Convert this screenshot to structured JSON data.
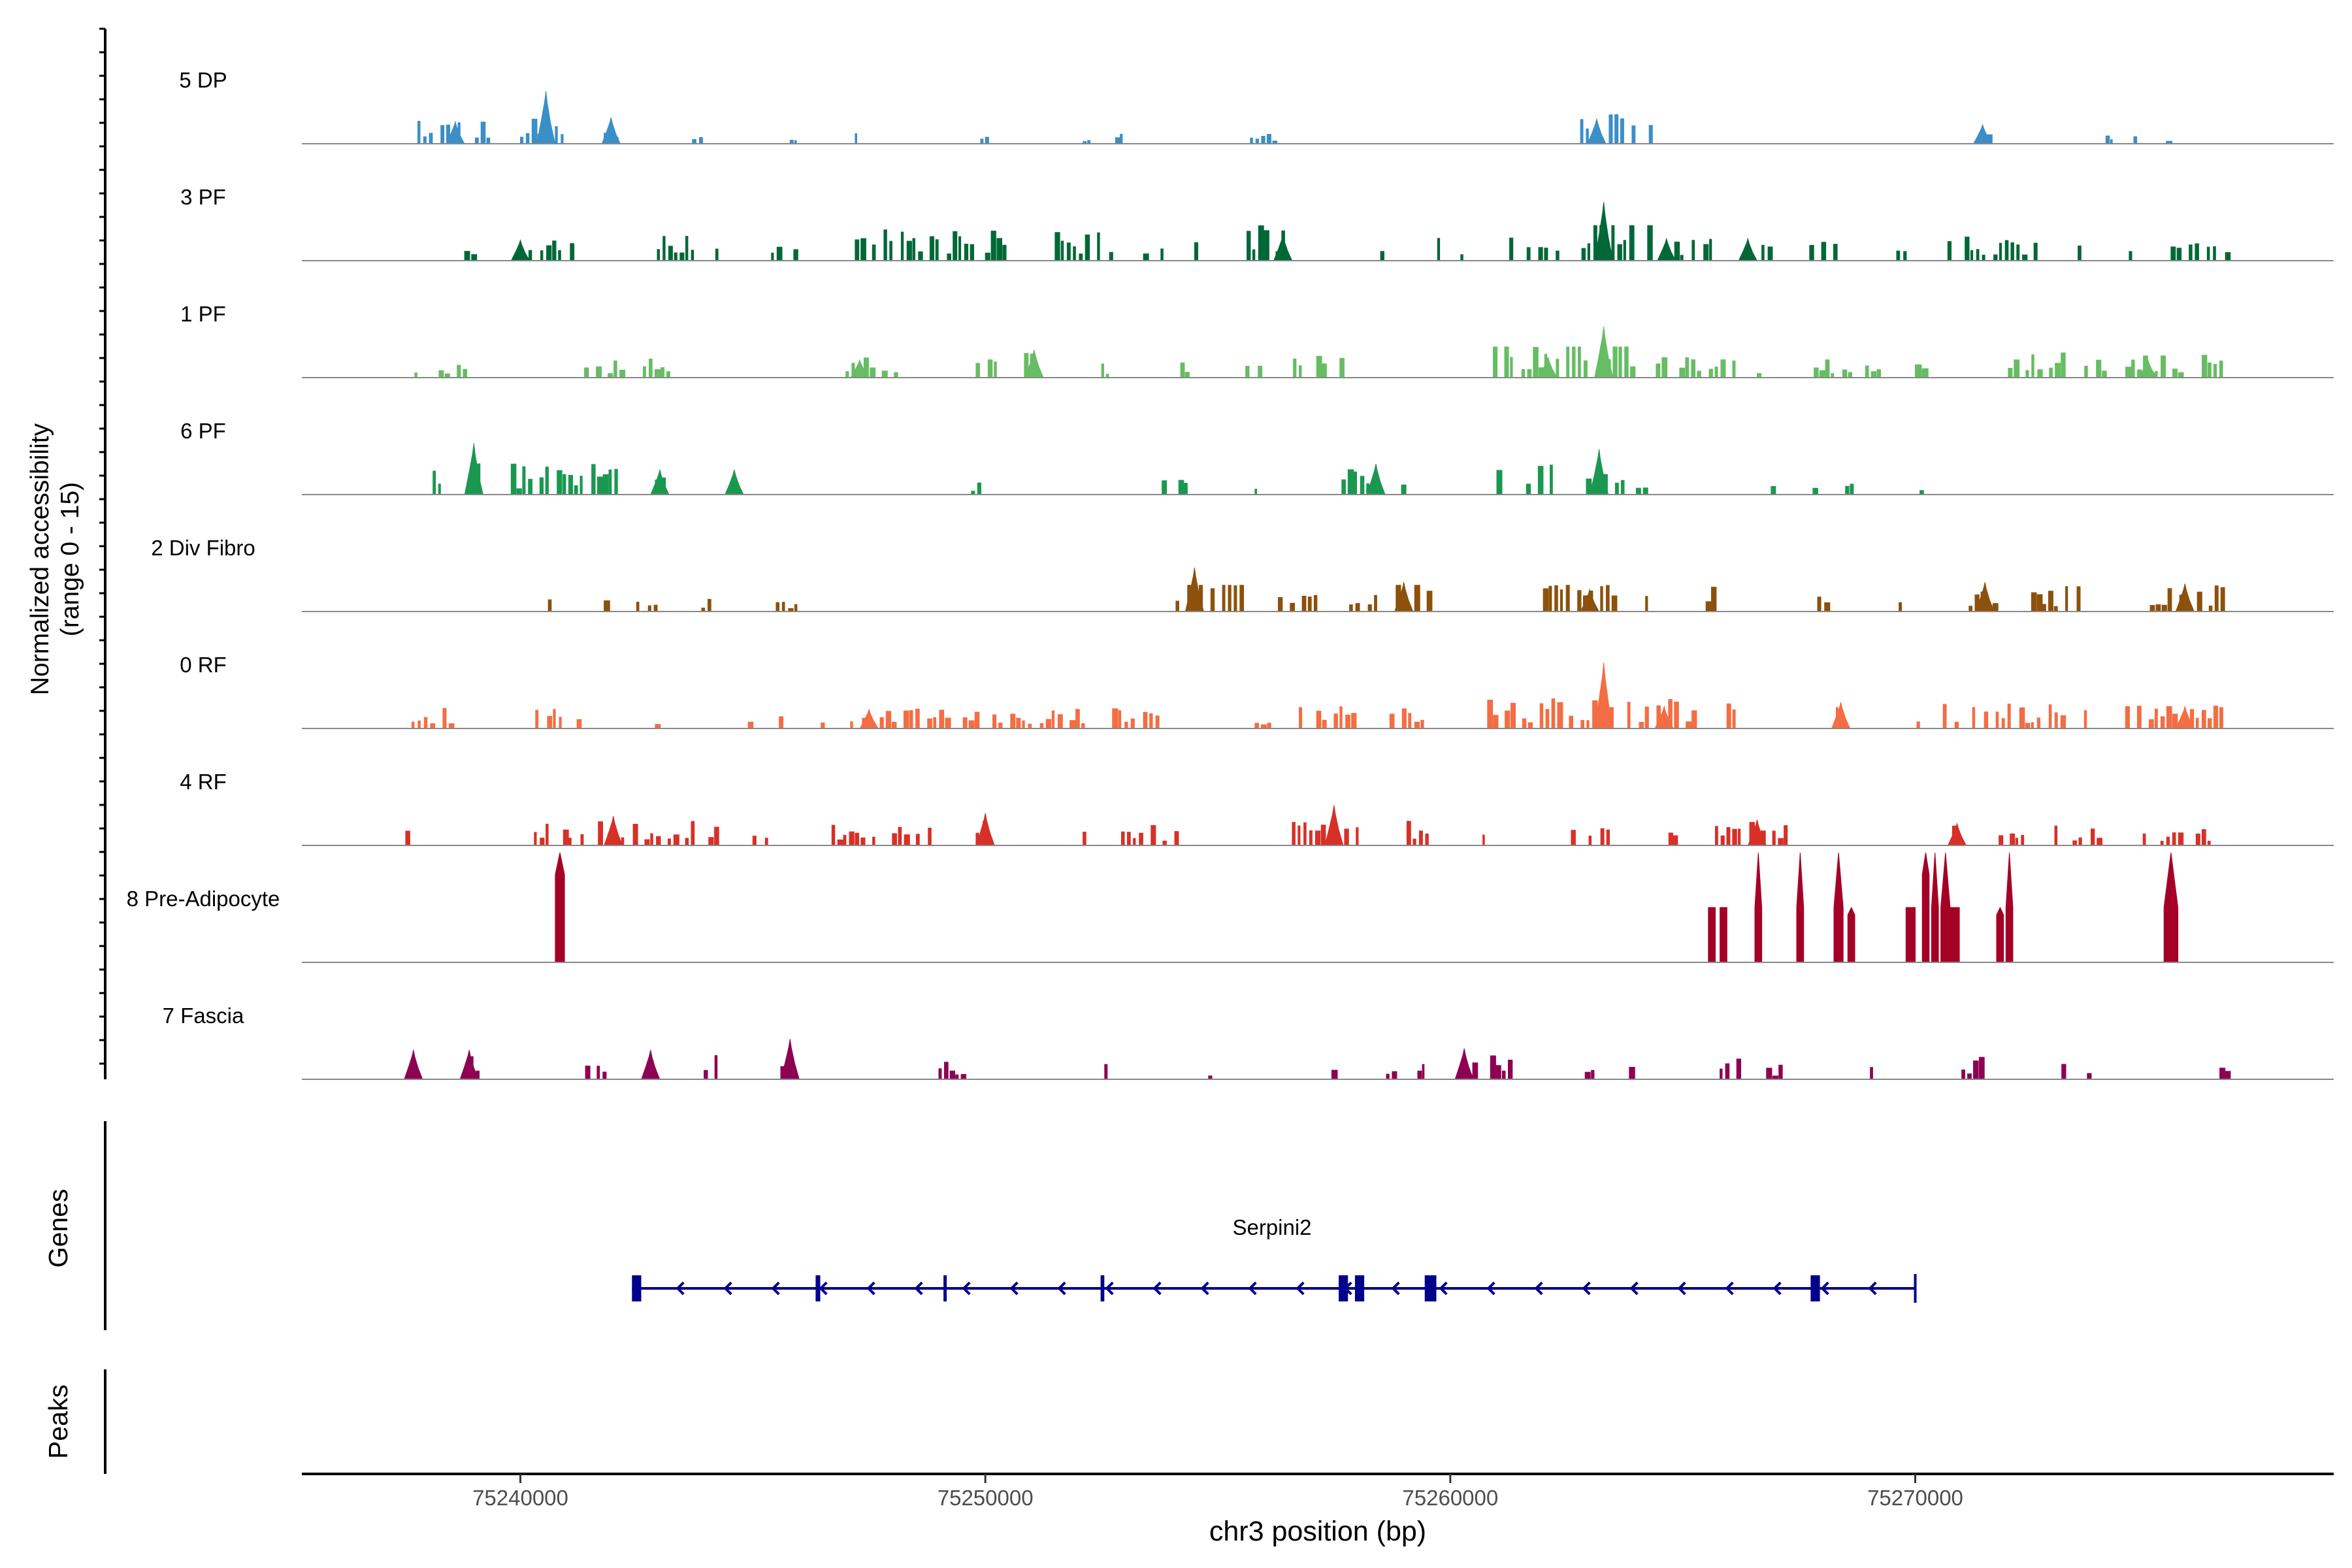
{
  "chart_data": {
    "type": "area",
    "chromosome": "chr3",
    "xlim": [
      75235300,
      75279000
    ],
    "xlabel": "chr3 position (bp)",
    "x_ticks": [
      75240000,
      75250000,
      75260000,
      75270000
    ],
    "x_tick_labels": [
      "75240000",
      "75250000",
      "75260000",
      "75270000"
    ],
    "ylabel_line1": "Normalized accessibility",
    "ylabel_line2": "(range 0 - 15)",
    "ylim": [
      0,
      15
    ],
    "genes_label": "Genes",
    "peaks_label": "Peaks",
    "series": [
      {
        "name": "5 DP",
        "color": "#3A8FC8",
        "seed": 11,
        "baseline": [
          75240200,
          75240400,
          75242000,
          75263400
        ],
        "max": 7.2,
        "peaks": [
          [
            75240550,
            7.2
          ],
          [
            75241950,
            3.6
          ],
          [
            75263150,
            3.4
          ],
          [
            75271450,
            2.6
          ],
          [
            75238600,
            3.0
          ]
        ],
        "regions": [
          [
            75237300,
            75239400,
            0.5
          ],
          [
            75240000,
            75241000,
            0.6
          ],
          [
            75241800,
            75242300,
            0.4
          ],
          [
            75243700,
            75244000,
            0.2
          ],
          [
            75245800,
            75246000,
            0.2
          ],
          [
            75247200,
            75247400,
            0.2
          ],
          [
            75248750,
            75248900,
            0.3
          ],
          [
            75249900,
            75250100,
            0.2
          ],
          [
            75252100,
            75252300,
            0.2
          ],
          [
            75252800,
            75253000,
            0.2
          ],
          [
            75255700,
            75256300,
            0.2
          ],
          [
            75262800,
            75264400,
            0.6
          ],
          [
            75271400,
            75271700,
            0.3
          ],
          [
            75274100,
            75274300,
            0.2
          ],
          [
            75274700,
            75274900,
            0.2
          ],
          [
            75275400,
            75275700,
            0.2
          ]
        ]
      },
      {
        "name": "3 PF",
        "color": "#006837",
        "seed": 23,
        "max": 8.0,
        "peaks": [
          [
            75263300,
            8.0
          ],
          [
            75256400,
            3.5
          ],
          [
            75264650,
            3.0
          ],
          [
            75240000,
            2.8
          ],
          [
            75266400,
            3.0
          ]
        ],
        "regions": [
          [
            75237900,
            75238200,
            0.3
          ],
          [
            75238800,
            75239100,
            0.3
          ],
          [
            75239800,
            75241200,
            0.5
          ],
          [
            75242700,
            75243800,
            0.5
          ],
          [
            75244200,
            75244600,
            0.4
          ],
          [
            75245400,
            75246000,
            0.5
          ],
          [
            75247200,
            75249800,
            0.6
          ],
          [
            75250000,
            75250500,
            0.6
          ],
          [
            75251500,
            75252800,
            0.6
          ],
          [
            75253400,
            75253900,
            0.3
          ],
          [
            75254500,
            75254800,
            0.4
          ],
          [
            75255500,
            75256500,
            0.7
          ],
          [
            75258500,
            75258700,
            0.3
          ],
          [
            75259600,
            75260600,
            0.5
          ],
          [
            75260900,
            75262400,
            0.6
          ],
          [
            75262700,
            75264500,
            1.0
          ],
          [
            75264700,
            75265700,
            0.5
          ],
          [
            75266300,
            75267100,
            0.4
          ],
          [
            75267600,
            75268500,
            0.4
          ],
          [
            75269600,
            75269900,
            0.2
          ],
          [
            75270700,
            75272800,
            0.5
          ],
          [
            75273400,
            75273600,
            0.3
          ],
          [
            75274600,
            75274800,
            0.3
          ],
          [
            75275500,
            75276800,
            0.4
          ]
        ]
      },
      {
        "name": "1 PF",
        "color": "#66BD63",
        "seed": 37,
        "max": 7.0,
        "peaks": [
          [
            75263300,
            7.0
          ],
          [
            75251050,
            3.8
          ],
          [
            75247300,
            2.4
          ],
          [
            75262100,
            2.8
          ],
          [
            75275000,
            2.5
          ]
        ],
        "regions": [
          [
            75237600,
            75238900,
            0.3
          ],
          [
            75241000,
            75243400,
            0.4
          ],
          [
            75244500,
            75244700,
            0.3
          ],
          [
            75247000,
            75248300,
            0.4
          ],
          [
            75249800,
            75251100,
            0.5
          ],
          [
            75252500,
            75252700,
            0.3
          ],
          [
            75254200,
            75254400,
            0.3
          ],
          [
            75255600,
            75256000,
            0.3
          ],
          [
            75256500,
            75258000,
            0.5
          ],
          [
            75260800,
            75262400,
            0.7
          ],
          [
            75262500,
            75264000,
            0.9
          ],
          [
            75264300,
            75266200,
            0.4
          ],
          [
            75266600,
            75266800,
            0.3
          ],
          [
            75267700,
            75269300,
            0.4
          ],
          [
            75270000,
            75270300,
            0.3
          ],
          [
            75271200,
            75271400,
            0.3
          ],
          [
            75272000,
            75276800,
            0.5
          ]
        ]
      },
      {
        "name": "6 PF",
        "color": "#1A9850",
        "seed": 41,
        "max": 7.0,
        "peaks": [
          [
            75239000,
            7.0
          ],
          [
            75243000,
            3.4
          ],
          [
            75263200,
            6.2
          ],
          [
            75258400,
            4.2
          ],
          [
            75244600,
            3.4
          ]
        ],
        "regions": [
          [
            75238000,
            75238600,
            0.5
          ],
          [
            75238900,
            75239200,
            0.7
          ],
          [
            75239800,
            75242400,
            0.6
          ],
          [
            75242900,
            75243300,
            0.4
          ],
          [
            75244000,
            75245000,
            0.4
          ],
          [
            75249700,
            75250100,
            0.3
          ],
          [
            75253800,
            75254400,
            0.3
          ],
          [
            75255800,
            75256000,
            0.3
          ],
          [
            75257400,
            75258600,
            0.5
          ],
          [
            75258800,
            75259100,
            0.3
          ],
          [
            75261000,
            75262400,
            0.6
          ],
          [
            75262800,
            75263800,
            0.9
          ],
          [
            75264000,
            75264300,
            0.3
          ],
          [
            75266900,
            75267200,
            0.3
          ],
          [
            75267800,
            75268100,
            0.3
          ],
          [
            75268500,
            75268700,
            0.4
          ],
          [
            75270000,
            75270200,
            0.3
          ],
          [
            75271900,
            75272100,
            0.2
          ]
        ]
      },
      {
        "name": "2 Div Fibro",
        "color": "#8C510A",
        "seed": 53,
        "max": 6.0,
        "peaks": [
          [
            75254500,
            6.0
          ],
          [
            75259000,
            4.0
          ],
          [
            75263000,
            3.0
          ],
          [
            75271500,
            4.0
          ],
          [
            75275800,
            3.8
          ]
        ],
        "regions": [
          [
            75238200,
            75238600,
            0.3
          ],
          [
            75240600,
            75241000,
            0.3
          ],
          [
            75241800,
            75242100,
            0.3
          ],
          [
            75242500,
            75243000,
            0.4
          ],
          [
            75243900,
            75244300,
            0.3
          ],
          [
            75245500,
            75246300,
            0.3
          ],
          [
            75248400,
            75248600,
            0.4
          ],
          [
            75250600,
            75250800,
            0.3
          ],
          [
            75254100,
            75255600,
            0.8
          ],
          [
            75256300,
            75257200,
            0.4
          ],
          [
            75257700,
            75258500,
            0.4
          ],
          [
            75258700,
            75259900,
            0.6
          ],
          [
            75260800,
            75261100,
            0.3
          ],
          [
            75262000,
            75263600,
            0.6
          ],
          [
            75264100,
            75264300,
            0.3
          ],
          [
            75265500,
            75266200,
            0.5
          ],
          [
            75267900,
            75268200,
            0.3
          ],
          [
            75269500,
            75269800,
            0.3
          ],
          [
            75270900,
            75271800,
            0.4
          ],
          [
            75272500,
            75273600,
            0.5
          ],
          [
            75274800,
            75276700,
            0.5
          ]
        ]
      },
      {
        "name": "0 RF",
        "color": "#F46D43",
        "seed": 67,
        "max": 9.0,
        "peaks": [
          [
            75263300,
            9.0
          ],
          [
            75268400,
            3.6
          ],
          [
            75264600,
            3.0
          ],
          [
            75247500,
            2.6
          ],
          [
            75275800,
            3.0
          ]
        ],
        "regions": [
          [
            75237400,
            75238600,
            0.4
          ],
          [
            75239100,
            75239400,
            0.3
          ],
          [
            75240200,
            75241600,
            0.4
          ],
          [
            75242900,
            75243200,
            0.3
          ],
          [
            75243800,
            75244200,
            0.3
          ],
          [
            75244900,
            75245700,
            0.3
          ],
          [
            75246200,
            75246600,
            0.3
          ],
          [
            75247100,
            75252200,
            0.4
          ],
          [
            75252600,
            75253800,
            0.4
          ],
          [
            75255800,
            75256200,
            0.3
          ],
          [
            75256500,
            75258500,
            0.5
          ],
          [
            75258700,
            75259500,
            0.4
          ],
          [
            75260800,
            75266200,
            0.6
          ],
          [
            75268300,
            75268500,
            0.5
          ],
          [
            75269900,
            75270300,
            0.3
          ],
          [
            75270600,
            75276800,
            0.5
          ]
        ]
      },
      {
        "name": "4 RF",
        "color": "#D73027",
        "seed": 79,
        "max": 5.5,
        "peaks": [
          [
            75257500,
            5.5
          ],
          [
            75242000,
            4.0
          ],
          [
            75250000,
            4.4
          ],
          [
            75266600,
            3.5
          ],
          [
            75270900,
            3.0
          ]
        ],
        "regions": [
          [
            75237400,
            75237800,
            0.3
          ],
          [
            75240300,
            75244300,
            0.5
          ],
          [
            75245000,
            75245400,
            0.3
          ],
          [
            75246700,
            75247700,
            0.4
          ],
          [
            75248000,
            75248900,
            0.5
          ],
          [
            75249800,
            75250100,
            0.6
          ],
          [
            75252100,
            75252300,
            0.4
          ],
          [
            75252800,
            75254200,
            0.4
          ],
          [
            75256600,
            75258100,
            0.5
          ],
          [
            75258800,
            75259600,
            0.5
          ],
          [
            75260700,
            75260900,
            0.4
          ],
          [
            75262600,
            75264000,
            0.4
          ],
          [
            75264700,
            75264900,
            0.3
          ],
          [
            75265700,
            75267300,
            0.5
          ],
          [
            75270700,
            75270900,
            0.4
          ],
          [
            75271800,
            75272400,
            0.3
          ],
          [
            75273000,
            75274300,
            0.4
          ],
          [
            75274900,
            75276800,
            0.4
          ]
        ]
      },
      {
        "name": "8 Pre-Adipocyte",
        "color": "#A50026",
        "seed": 83,
        "type": "spikes",
        "max": 15,
        "spikes": [
          [
            75240750,
            75240950,
            15,
            12
          ],
          [
            75265550,
            75265700,
            7.5,
            7.5
          ],
          [
            75265800,
            75265950,
            7.5,
            7.5
          ],
          [
            75266550,
            75266700,
            15,
            7.5
          ],
          [
            75267450,
            75267600,
            15,
            7.5
          ],
          [
            75268250,
            75268450,
            15,
            7.5
          ],
          [
            75268550,
            75268700,
            7.5,
            6.5
          ],
          [
            75269800,
            75270000,
            7.5,
            7.5
          ],
          [
            75270150,
            75270300,
            15,
            12
          ],
          [
            75270350,
            75270500,
            15,
            7.5
          ],
          [
            75270550,
            75270750,
            15,
            7.5
          ],
          [
            75270750,
            75270950,
            7.5,
            7.5
          ],
          [
            75271750,
            75271900,
            7.5,
            6.5
          ],
          [
            75271950,
            75272100,
            15,
            7.5
          ],
          [
            75275350,
            75275650,
            15,
            7.5
          ]
        ]
      },
      {
        "name": "7 Fascia",
        "color": "#8E0152",
        "seed": 97,
        "max": 5.5,
        "peaks": [
          [
            75245800,
            5.5
          ],
          [
            75260300,
            4.2
          ],
          [
            75242800,
            4.0
          ],
          [
            75238900,
            4.0
          ],
          [
            75237700,
            4.0
          ]
        ],
        "regions": [
          [
            75237600,
            75238000,
            0.5
          ],
          [
            75238400,
            75238600,
            0.3
          ],
          [
            75238700,
            75239400,
            0.5
          ],
          [
            75241400,
            75241900,
            0.4
          ],
          [
            75242600,
            75243100,
            0.5
          ],
          [
            75243600,
            75244300,
            0.5
          ],
          [
            75245600,
            75246000,
            0.6
          ],
          [
            75249000,
            75249600,
            0.4
          ],
          [
            75252300,
            75252700,
            0.3
          ],
          [
            75254800,
            75255100,
            0.3
          ],
          [
            75257300,
            75257600,
            0.3
          ],
          [
            75258500,
            75259000,
            0.4
          ],
          [
            75259300,
            75259500,
            0.3
          ],
          [
            75260100,
            75261500,
            0.5
          ],
          [
            75262900,
            75263300,
            0.3
          ],
          [
            75263700,
            75264000,
            0.4
          ],
          [
            75265800,
            75266400,
            0.4
          ],
          [
            75266800,
            75267200,
            0.3
          ],
          [
            75267800,
            75268000,
            0.3
          ],
          [
            75268900,
            75269300,
            0.3
          ],
          [
            75271000,
            75271500,
            0.5
          ],
          [
            75273000,
            75273300,
            0.4
          ],
          [
            75273600,
            75273800,
            0.3
          ],
          [
            75276300,
            75276800,
            0.4
          ]
        ]
      }
    ],
    "gene": {
      "name": "Serpini2",
      "color": "#00008B",
      "start": 75242400,
      "end": 75270000,
      "strand": "-",
      "exons": [
        [
          75242400,
          75242600
        ],
        [
          75246350,
          75246450
        ],
        [
          75249100,
          75249160
        ],
        [
          75252480,
          75252560
        ],
        [
          75257600,
          75257800
        ],
        [
          75257950,
          75258150
        ],
        [
          75259450,
          75259700
        ],
        [
          75267750,
          75267950
        ]
      ]
    }
  }
}
